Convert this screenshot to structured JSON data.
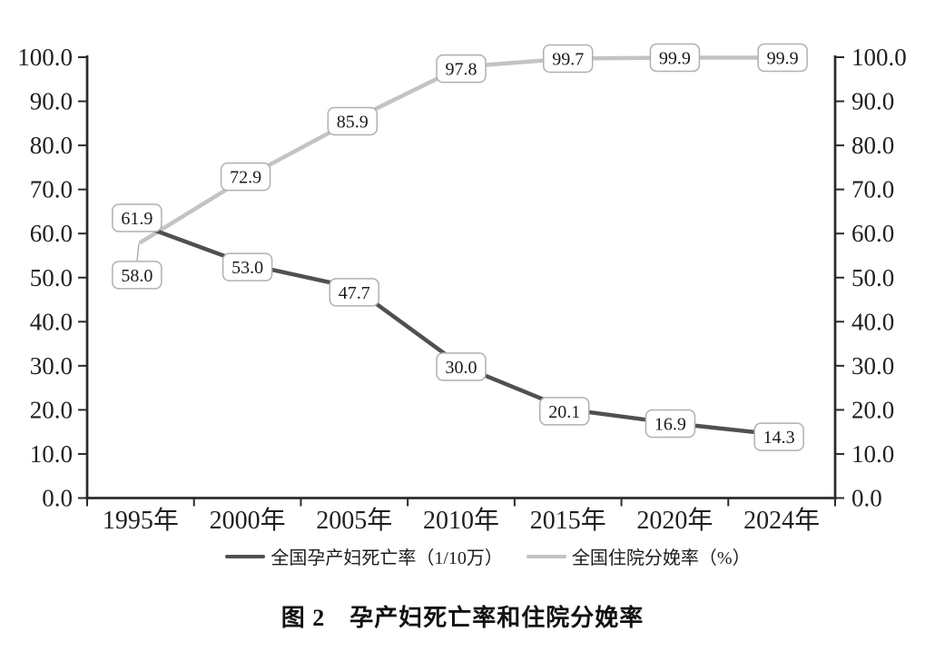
{
  "chart_data": {
    "type": "line",
    "title": "图 2　孕产妇死亡率和住院分娩率",
    "categories": [
      "1995年",
      "2000年",
      "2005年",
      "2010年",
      "2015年",
      "2020年",
      "2024年"
    ],
    "series": [
      {
        "name": "全国孕产妇死亡率（1/10万）",
        "color": "#505050",
        "values": [
          61.9,
          53.0,
          47.7,
          30.0,
          20.1,
          16.9,
          14.3
        ],
        "label_offsets": [
          [
            -4,
            -8
          ],
          [
            0,
            3
          ],
          [
            0,
            5
          ],
          [
            0,
            1
          ],
          [
            -4,
            2
          ],
          [
            -5,
            0
          ],
          [
            -3,
            2
          ]
        ],
        "leader_points": []
      },
      {
        "name": "全国住院分娩率（%）",
        "color": "#c3c3c3",
        "values": [
          58.0,
          72.9,
          85.9,
          97.8,
          99.7,
          99.9,
          99.9
        ],
        "label_offsets": [
          [
            -4,
            36
          ],
          [
            -2,
            0
          ],
          [
            -2,
            2
          ],
          [
            0,
            2
          ],
          [
            0,
            0
          ],
          [
            0,
            0
          ],
          [
            1,
            0
          ]
        ],
        "leader_points": [
          0
        ]
      }
    ],
    "ylim": [
      0,
      100
    ],
    "y_tick_step": 10,
    "y_tick_labels": [
      "0.0",
      "10.0",
      "20.0",
      "30.0",
      "40.0",
      "50.0",
      "60.0",
      "70.0",
      "80.0",
      "90.0",
      "100.0"
    ],
    "value_label_decimals": 1,
    "grid": false,
    "axes": "dual-y-mirrored",
    "legend_position": "bottom",
    "data_label_style": "boxed"
  },
  "legend": {
    "items": [
      {
        "label": "全国孕产妇死亡率（1/10万）",
        "color": "#505050"
      },
      {
        "label": "全国住院分娩率（%）",
        "color": "#c3c3c3"
      }
    ]
  },
  "caption": "图 2　孕产妇死亡率和住院分娩率",
  "colors": {
    "axis": "#2b2b2b",
    "tick_text": "#1f1f1f",
    "label_box_border": "#b0b0b0",
    "label_box_fill": "#ffffff",
    "label_text": "#1a1a1a",
    "background": "#ffffff"
  }
}
